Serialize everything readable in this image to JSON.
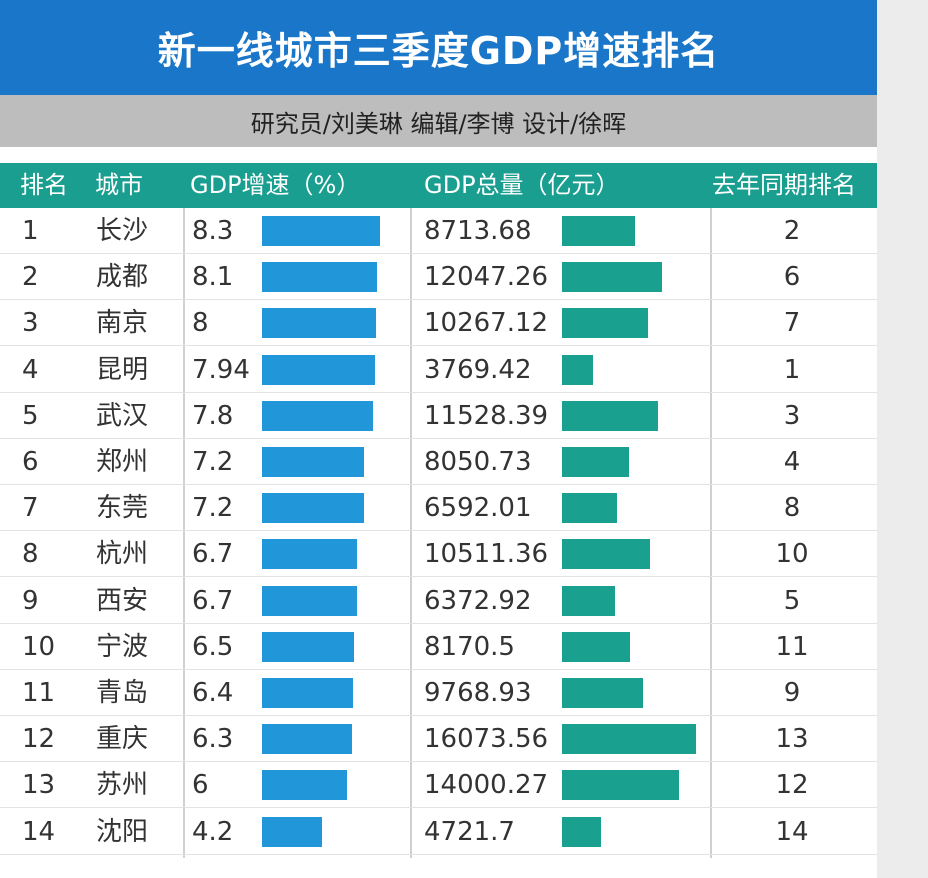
{
  "title": "新一线城市三季度GDP增速排名",
  "credits": "研究员/刘美琳 编辑/李博 设计/徐晖",
  "colors": {
    "title_bg": "#1976c8",
    "credit_bg": "#bdbdbd",
    "header_bg": "#1a9e8f",
    "growth_bar": "#2196d8",
    "total_bar": "#19a08e"
  },
  "headers": {
    "rank": "排名",
    "city": "城市",
    "growth": "GDP增速（%）",
    "total": "GDP总量（亿元）",
    "last_year_rank": "去年同期排名"
  },
  "chart_data": {
    "type": "table",
    "title": "新一线城市三季度GDP增速排名",
    "columns": [
      "排名",
      "城市",
      "GDP增速（%）",
      "GDP总量（亿元）",
      "去年同期排名"
    ],
    "rows": [
      {
        "rank": "1",
        "city": "长沙",
        "growth": "8.3",
        "total": "8713.68",
        "last_year_rank": "2"
      },
      {
        "rank": "2",
        "city": "成都",
        "growth": "8.1",
        "total": "12047.26",
        "last_year_rank": "6"
      },
      {
        "rank": "3",
        "city": "南京",
        "growth": "8",
        "total": "10267.12",
        "last_year_rank": "7"
      },
      {
        "rank": "4",
        "city": "昆明",
        "growth": "7.94",
        "total": "3769.42",
        "last_year_rank": "1"
      },
      {
        "rank": "5",
        "city": "武汉",
        "growth": "7.8",
        "total": "11528.39",
        "last_year_rank": "3"
      },
      {
        "rank": "6",
        "city": "郑州",
        "growth": "7.2",
        "total": "8050.73",
        "last_year_rank": "4"
      },
      {
        "rank": "7",
        "city": "东莞",
        "growth": "7.2",
        "total": "6592.01",
        "last_year_rank": "8"
      },
      {
        "rank": "8",
        "city": "杭州",
        "growth": "6.7",
        "total": "10511.36",
        "last_year_rank": "10"
      },
      {
        "rank": "9",
        "city": "西安",
        "growth": "6.7",
        "total": "6372.92",
        "last_year_rank": "5"
      },
      {
        "rank": "10",
        "city": "宁波",
        "growth": "6.5",
        "total": "8170.5",
        "last_year_rank": "11"
      },
      {
        "rank": "11",
        "city": "青岛",
        "growth": "6.4",
        "total": "9768.93",
        "last_year_rank": "9"
      },
      {
        "rank": "12",
        "city": "重庆",
        "growth": "6.3",
        "total": "16073.56",
        "last_year_rank": "13"
      },
      {
        "rank": "13",
        "city": "苏州",
        "growth": "6",
        "total": "14000.27",
        "last_year_rank": "12"
      },
      {
        "rank": "14",
        "city": "沈阳",
        "growth": "4.2",
        "total": "4721.7",
        "last_year_rank": "14"
      }
    ]
  }
}
